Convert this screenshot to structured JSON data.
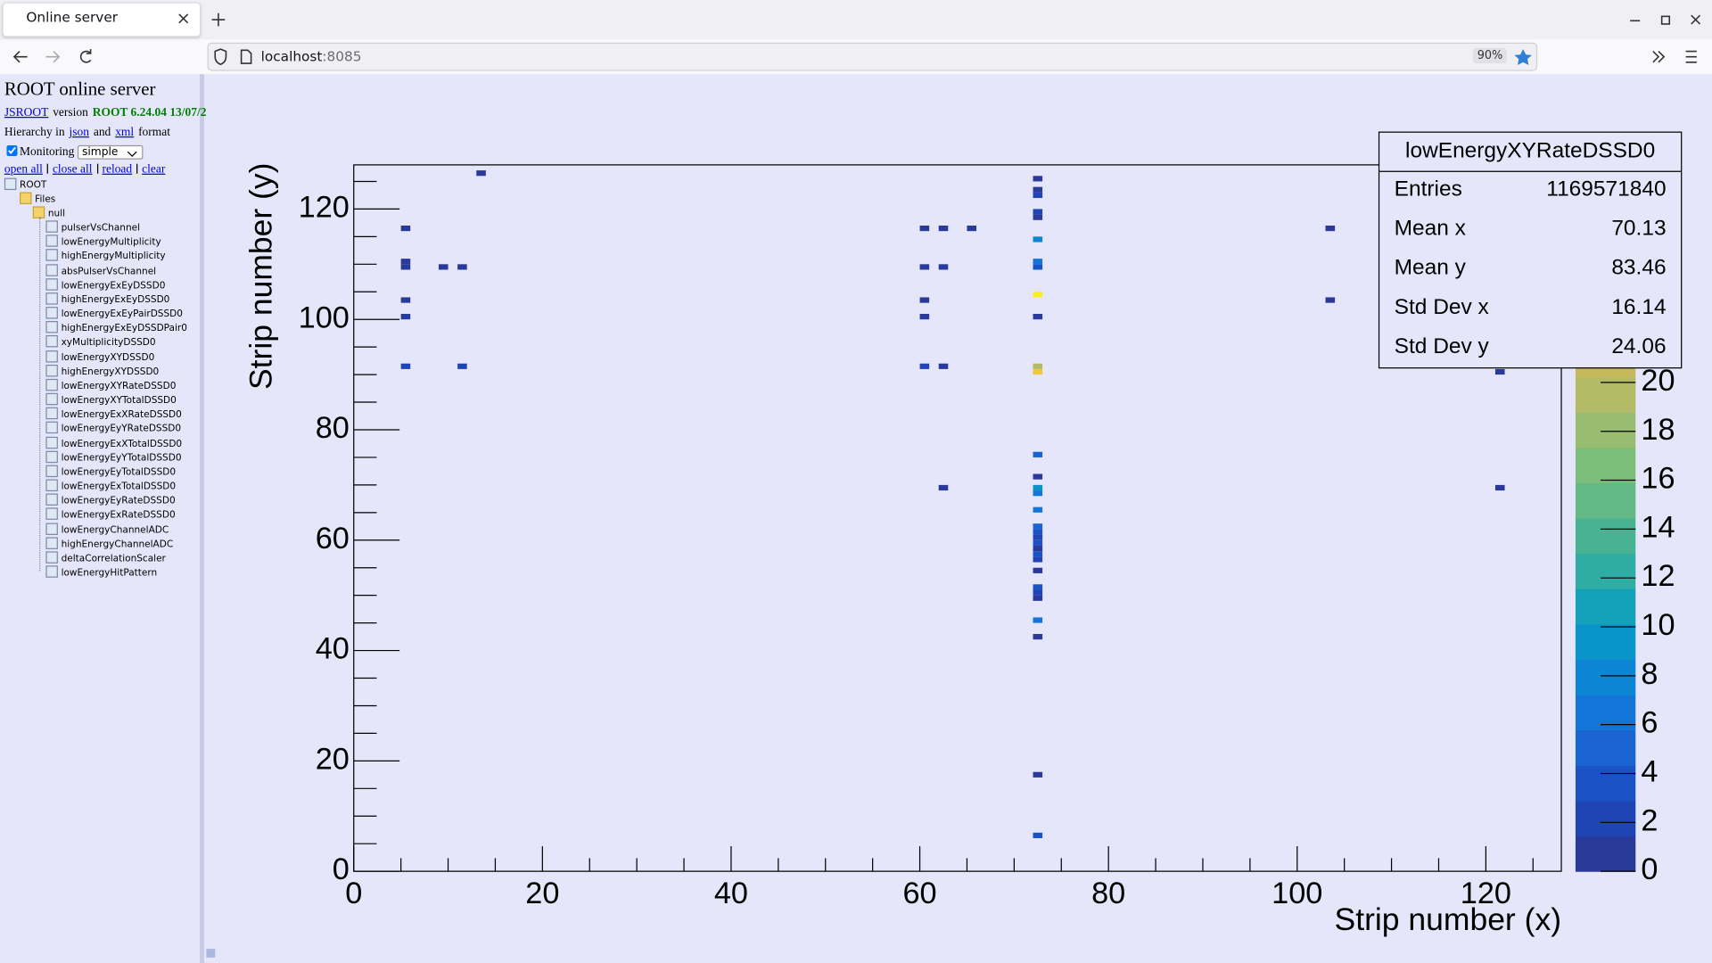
{
  "browser": {
    "tab_title": "Online server",
    "url_host": "localhost",
    "url_port": ":8085",
    "zoom": "90%"
  },
  "sidebar": {
    "title": "ROOT online server",
    "jsroot_link": "JSROOT",
    "version_word": "version",
    "root_version": "ROOT 6.24.04 13/07/2",
    "hierarchy_prefix": "Hierarchy in",
    "json_link": "json",
    "and_word": "and",
    "xml_link": "xml",
    "format_word": "format",
    "monitoring_label": "Monitoring",
    "monitoring_mode": "simple",
    "actions": [
      "open all",
      "close all",
      "reload",
      "clear"
    ],
    "tree": {
      "root": "ROOT",
      "files": "Files",
      "folder": "null",
      "items": [
        "pulserVsChannel",
        "lowEnergyMultiplicity",
        "highEnergyMultiplicity",
        "absPulserVsChannel",
        "lowEnergyExEyDSSD0",
        "highEnergyExEyDSSD0",
        "lowEnergyExEyPairDSSD0",
        "highEnergyExEyDSSDPair0",
        "xyMultiplicityDSSD0",
        "lowEnergyXYDSSD0",
        "highEnergyXYDSSD0",
        "lowEnergyXYRateDSSD0",
        "lowEnergyXYTotalDSSD0",
        "lowEnergyExXRateDSSD0",
        "lowEnergyEyYRateDSSD0",
        "lowEnergyExXTotalDSSD0",
        "lowEnergyEyYTotalDSSD0",
        "lowEnergyEyTotalDSSD0",
        "lowEnergyExTotalDSSD0",
        "lowEnergyEyRateDSSD0",
        "lowEnergyExRateDSSD0",
        "lowEnergyChannelADC",
        "highEnergyChannelADC",
        "deltaCorrelationScaler",
        "lowEnergyHitPattern"
      ]
    }
  },
  "chart": {
    "type": "heatmap",
    "xlabel": "Strip number (x)",
    "ylabel": "Strip number (y)",
    "xlim": [
      0,
      128
    ],
    "ylim": [
      0,
      128
    ],
    "xticks": [
      0,
      20,
      40,
      60,
      80,
      100,
      120
    ],
    "yticks": [
      0,
      20,
      40,
      60,
      80,
      100,
      120
    ],
    "minor_divisions": 4,
    "zlim": [
      0,
      28.9
    ],
    "zticks": [
      0,
      2,
      4,
      6,
      8,
      10,
      12,
      14,
      16,
      18,
      20
    ],
    "palette": [
      "#2a3a9a",
      "#1f45b4",
      "#1b53c6",
      "#1a63d2",
      "#1375d8",
      "#0b85d4",
      "#0a94cc",
      "#14a2bb",
      "#2faca4",
      "#48b392",
      "#62b985",
      "#7dbd7a",
      "#98bd70",
      "#b3bb66",
      "#c8b85c",
      "#dbb652",
      "#e8ba45",
      "#f1c73a",
      "#f5d92c",
      "#f9ee1c"
    ],
    "cells": [
      {
        "x": 5,
        "y": 116,
        "z": 1
      },
      {
        "x": 5,
        "y": 110,
        "z": 1
      },
      {
        "x": 5,
        "y": 109,
        "z": 1
      },
      {
        "x": 5,
        "y": 103,
        "z": 1
      },
      {
        "x": 5,
        "y": 100,
        "z": 1
      },
      {
        "x": 5,
        "y": 91,
        "z": 2
      },
      {
        "x": 9,
        "y": 109,
        "z": 1
      },
      {
        "x": 11,
        "y": 109,
        "z": 1
      },
      {
        "x": 11,
        "y": 91,
        "z": 2
      },
      {
        "x": 13,
        "y": 126,
        "z": 1
      },
      {
        "x": 60,
        "y": 116,
        "z": 1
      },
      {
        "x": 60,
        "y": 109,
        "z": 1
      },
      {
        "x": 60,
        "y": 103,
        "z": 1
      },
      {
        "x": 60,
        "y": 100,
        "z": 1
      },
      {
        "x": 60,
        "y": 91,
        "z": 2
      },
      {
        "x": 62,
        "y": 116,
        "z": 1
      },
      {
        "x": 62,
        "y": 109,
        "z": 1
      },
      {
        "x": 62,
        "y": 91,
        "z": 1
      },
      {
        "x": 62,
        "y": 69,
        "z": 1
      },
      {
        "x": 65,
        "y": 116,
        "z": 1
      },
      {
        "x": 72,
        "y": 125,
        "z": 1
      },
      {
        "x": 72,
        "y": 123,
        "z": 1
      },
      {
        "x": 72,
        "y": 122,
        "z": 2
      },
      {
        "x": 72,
        "y": 119,
        "z": 2
      },
      {
        "x": 72,
        "y": 118,
        "z": 1
      },
      {
        "x": 72,
        "y": 114,
        "z": 8
      },
      {
        "x": 72,
        "y": 110,
        "z": 6
      },
      {
        "x": 72,
        "y": 109,
        "z": 3
      },
      {
        "x": 72,
        "y": 104,
        "z": 28
      },
      {
        "x": 72,
        "y": 100,
        "z": 1
      },
      {
        "x": 72,
        "y": 91,
        "z": 20
      },
      {
        "x": 72,
        "y": 90,
        "z": 25
      },
      {
        "x": 72,
        "y": 75,
        "z": 5
      },
      {
        "x": 72,
        "y": 71,
        "z": 1
      },
      {
        "x": 72,
        "y": 69,
        "z": 9
      },
      {
        "x": 72,
        "y": 68,
        "z": 6
      },
      {
        "x": 72,
        "y": 65,
        "z": 7
      },
      {
        "x": 72,
        "y": 62,
        "z": 5
      },
      {
        "x": 72,
        "y": 61,
        "z": 3
      },
      {
        "x": 72,
        "y": 60,
        "z": 2
      },
      {
        "x": 72,
        "y": 59,
        "z": 4
      },
      {
        "x": 72,
        "y": 58,
        "z": 1
      },
      {
        "x": 72,
        "y": 57,
        "z": 3
      },
      {
        "x": 72,
        "y": 56,
        "z": 2
      },
      {
        "x": 72,
        "y": 54,
        "z": 1
      },
      {
        "x": 72,
        "y": 51,
        "z": 3
      },
      {
        "x": 72,
        "y": 50,
        "z": 2
      },
      {
        "x": 72,
        "y": 49,
        "z": 1
      },
      {
        "x": 72,
        "y": 45,
        "z": 7
      },
      {
        "x": 72,
        "y": 42,
        "z": 1
      },
      {
        "x": 72,
        "y": 17,
        "z": 1
      },
      {
        "x": 72,
        "y": 6,
        "z": 3
      },
      {
        "x": 103,
        "y": 116,
        "z": 1
      },
      {
        "x": 103,
        "y": 103,
        "z": 1
      },
      {
        "x": 121,
        "y": 90,
        "z": 1
      },
      {
        "x": 121,
        "y": 69,
        "z": 1
      }
    ],
    "stats": {
      "title": "lowEnergyXYRateDSSD0",
      "rows": [
        {
          "label": "Entries",
          "value": 1169571840
        },
        {
          "label": "Mean x",
          "value": 70.13
        },
        {
          "label": "Mean y",
          "value": 83.46
        },
        {
          "label": "Std Dev x",
          "value": 16.14
        },
        {
          "label": "Std Dev y",
          "value": 24.06
        }
      ]
    }
  }
}
